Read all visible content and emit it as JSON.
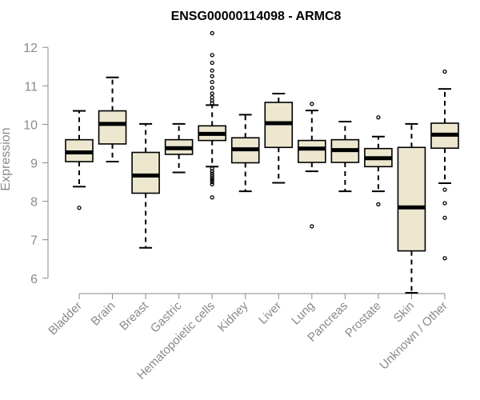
{
  "chart_data": {
    "type": "box",
    "title": "ENSG00000114098 - ARMC8",
    "xlabel": "",
    "ylabel": "Expression",
    "ylim": [
      5.6,
      12.4
    ],
    "yticks": [
      6,
      7,
      8,
      9,
      10,
      11,
      12
    ],
    "grid": false,
    "box_fill": "#ede7d0",
    "categories": [
      "Bladder",
      "Brain",
      "Breast",
      "Gastric",
      "Hematopoietic cells",
      "Kidney",
      "Liver",
      "Lung",
      "Pancreas",
      "Prostate",
      "Skin",
      "Unknown / Other"
    ],
    "boxes": [
      {
        "category": "Bladder",
        "whisker_low": 8.38,
        "q1": 9.03,
        "median": 9.27,
        "q3": 9.6,
        "whisker_high": 10.35,
        "outliers": [
          7.83
        ]
      },
      {
        "category": "Brain",
        "whisker_low": 9.03,
        "q1": 9.49,
        "median": 10.01,
        "q3": 10.35,
        "whisker_high": 11.22,
        "outliers": []
      },
      {
        "category": "Breast",
        "whisker_low": 6.79,
        "q1": 8.21,
        "median": 8.67,
        "q3": 9.27,
        "whisker_high": 10.01,
        "outliers": []
      },
      {
        "category": "Gastric",
        "whisker_low": 8.75,
        "q1": 9.22,
        "median": 9.38,
        "q3": 9.6,
        "whisker_high": 10.01,
        "outliers": []
      },
      {
        "category": "Hematopoietic cells",
        "whisker_low": 8.9,
        "q1": 9.58,
        "median": 9.75,
        "q3": 9.96,
        "whisker_high": 10.5,
        "outliers": [
          12.37,
          11.8,
          11.6,
          11.4,
          11.25,
          11.1,
          10.95,
          10.8,
          10.7,
          10.62,
          10.55,
          8.85,
          8.78,
          8.72,
          8.66,
          8.6,
          8.55,
          8.5,
          8.44,
          8.1
        ]
      },
      {
        "category": "Kidney",
        "whisker_low": 8.26,
        "q1": 9.0,
        "median": 9.35,
        "q3": 9.65,
        "whisker_high": 10.25,
        "outliers": []
      },
      {
        "category": "Liver",
        "whisker_low": 8.48,
        "q1": 9.4,
        "median": 10.03,
        "q3": 10.57,
        "whisker_high": 10.8,
        "outliers": []
      },
      {
        "category": "Lung",
        "whisker_low": 8.78,
        "q1": 9.01,
        "median": 9.37,
        "q3": 9.58,
        "whisker_high": 10.36,
        "outliers": [
          10.53,
          7.35
        ]
      },
      {
        "category": "Pancreas",
        "whisker_low": 8.26,
        "q1": 9.01,
        "median": 9.33,
        "q3": 9.6,
        "whisker_high": 10.07,
        "outliers": []
      },
      {
        "category": "Prostate",
        "whisker_low": 8.26,
        "q1": 8.9,
        "median": 9.12,
        "q3": 9.37,
        "whisker_high": 9.68,
        "outliers": [
          10.18,
          7.92
        ]
      },
      {
        "category": "Skin",
        "whisker_low": 5.62,
        "q1": 6.71,
        "median": 7.84,
        "q3": 9.4,
        "whisker_high": 10.01,
        "outliers": []
      },
      {
        "category": "Unknown / Other",
        "whisker_low": 8.47,
        "q1": 9.38,
        "median": 9.73,
        "q3": 10.03,
        "whisker_high": 10.92,
        "outliers": [
          11.37,
          8.3,
          7.95,
          7.57,
          6.52
        ]
      }
    ]
  }
}
